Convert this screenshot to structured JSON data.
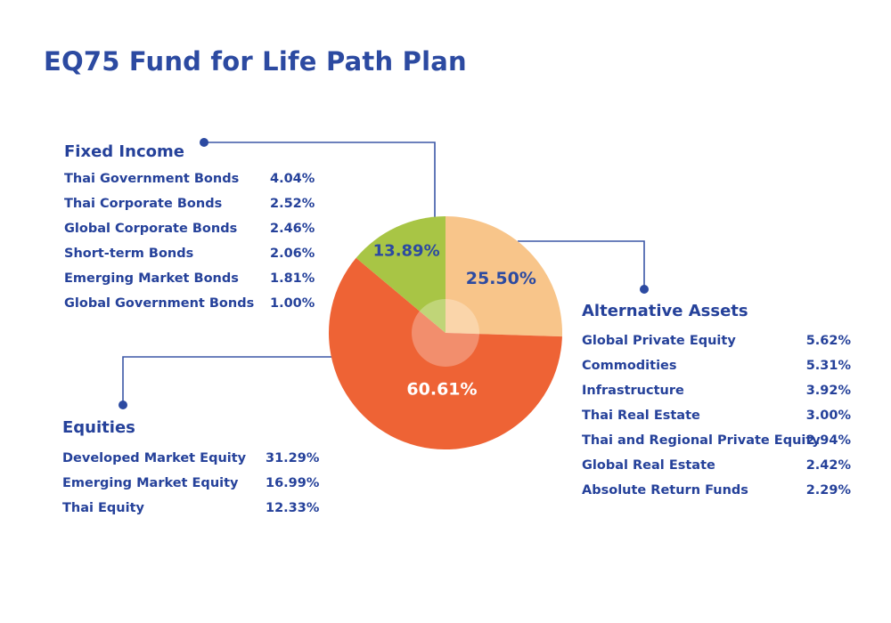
{
  "title": "EQ75 Fund for Life Path Plan",
  "colors": {
    "title": "#2c4aa1",
    "text": "#25419a",
    "connector": "#3b57a6",
    "fixed_income": "#a8c545",
    "alternative_assets": "#f8c58a",
    "equities": "#ee6335"
  },
  "groups": {
    "fixed_income": {
      "title": "Fixed Income",
      "rows": [
        {
          "label": "Thai Government Bonds",
          "value": "4.04%"
        },
        {
          "label": "Thai Corporate Bonds",
          "value": "2.52%"
        },
        {
          "label": "Global Corporate Bonds",
          "value": "2.46%"
        },
        {
          "label": "Short-term Bonds",
          "value": "2.06%"
        },
        {
          "label": "Emerging Market Bonds",
          "value": "1.81%"
        },
        {
          "label": "Global Government Bonds",
          "value": "1.00%"
        }
      ]
    },
    "alternative_assets": {
      "title": "Alternative Assets",
      "rows": [
        {
          "label": "Global Private Equity",
          "value": "5.62%"
        },
        {
          "label": "Commodities",
          "value": "5.31%"
        },
        {
          "label": "Infrastructure",
          "value": "3.92%"
        },
        {
          "label": "Thai Real Estate",
          "value": "3.00%"
        },
        {
          "label": "Thai and Regional Private Equity",
          "value": "2.94%"
        },
        {
          "label": "Global Real Estate",
          "value": "2.42%"
        },
        {
          "label": "Absolute Return Funds",
          "value": "2.29%"
        }
      ]
    },
    "equities": {
      "title": "Equities",
      "rows": [
        {
          "label": "Developed Market Equity",
          "value": "31.29%"
        },
        {
          "label": "Emerging Market Equity",
          "value": "16.99%"
        },
        {
          "label": "Thai Equity",
          "value": "12.33%"
        }
      ]
    }
  },
  "chart_data": {
    "type": "pie",
    "title": "EQ75 Fund for Life Path Plan",
    "start": "12 o'clock, clockwise",
    "slices": [
      {
        "key": "alternative_assets",
        "label": "25.50%",
        "value": 25.5,
        "color": "#f8c58a"
      },
      {
        "key": "equities",
        "label": "60.61%",
        "value": 60.61,
        "color": "#ee6335"
      },
      {
        "key": "fixed_income",
        "label": "13.89%",
        "value": 13.89,
        "color": "#a8c545"
      }
    ]
  }
}
